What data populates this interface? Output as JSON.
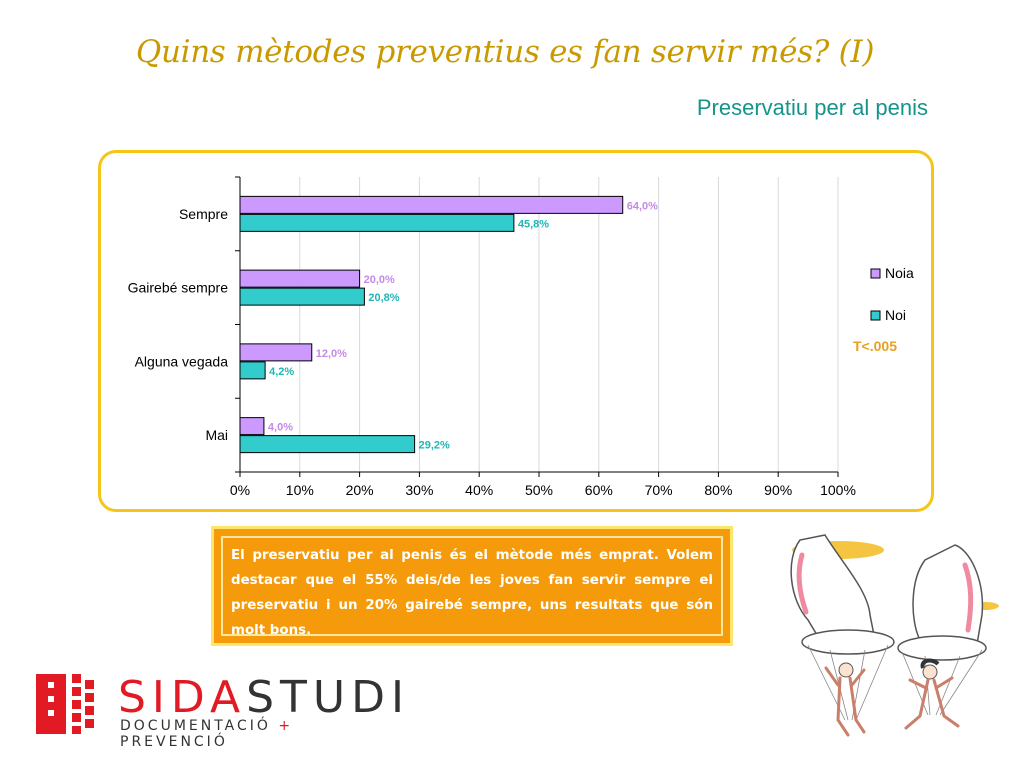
{
  "slide": {
    "title": "Quins mètodes preventius es fan servir més? (I)",
    "subtitle": "Preservatiu per al penis",
    "callout_text": "El preservatiu per al penis és el mètode més emprat. Volem destacar que el 55% dels/de les joves  fan servir sempre el preservatiu i un 20% gairebé sempre, uns resultats que són molt bons."
  },
  "logo": {
    "word_red": "SIDA",
    "word_dark": "STUDI",
    "tagline_a": "DOCUMENTACIÓ",
    "tagline_plus": "+",
    "tagline_b": "PREVENCIÓ"
  },
  "illustration": {
    "icon": "condom-parachute-illustration"
  },
  "colors": {
    "title": "#c99a00",
    "subtitle": "#16948c",
    "frame": "#f5c518",
    "callout_bg": "#f59b0b",
    "logo_red": "#e21a23"
  },
  "chart_data": {
    "type": "bar",
    "orientation": "horizontal",
    "categories": [
      "Sempre",
      "Gairebé sempre",
      "Alguna vegada",
      "Mai"
    ],
    "series": [
      {
        "name": "Noia",
        "values": [
          64.0,
          20.0,
          12.0,
          4.0
        ],
        "labels": [
          "64,0%",
          "20,0%",
          "12,0%",
          "4,0%"
        ],
        "color": "#cc99ff",
        "label_color": "#c58ae6"
      },
      {
        "name": "Noi",
        "values": [
          45.8,
          20.8,
          4.2,
          29.2
        ],
        "labels": [
          "45,8%",
          "20,8%",
          "4,2%",
          "29,2%"
        ],
        "color": "#33cccc",
        "label_color": "#22b5b5"
      }
    ],
    "x_ticks": [
      "0%",
      "10%",
      "20%",
      "30%",
      "40%",
      "50%",
      "60%",
      "70%",
      "80%",
      "90%",
      "100%"
    ],
    "xlim": [
      0,
      100
    ],
    "grid": true,
    "legend_position": "right",
    "annotation": "T<.005",
    "annotation_color": "#e8a020"
  }
}
